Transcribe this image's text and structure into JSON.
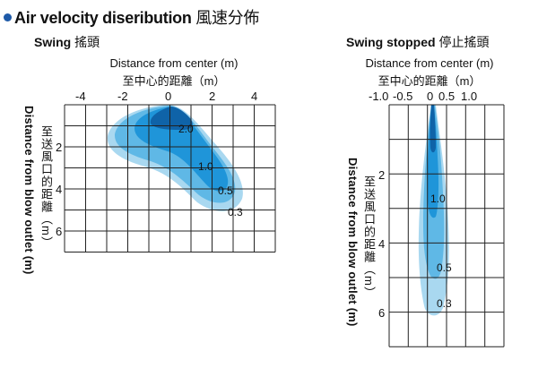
{
  "title": {
    "bullet": "bullet-dot",
    "en": "Air velocity diseribution",
    "cjk": "風速分佈"
  },
  "colors": {
    "outer": "#a9d8f0",
    "middle": "#5fb8e6",
    "inner": "#1f95d9",
    "core": "#0f63a8",
    "grid": "#222222"
  },
  "swing": {
    "subtitle_en": "Swing",
    "subtitle_cjk": "搖頭",
    "x_title_en": "Distance from center (m)",
    "x_title_cjk": "至中心的距離（m）",
    "x_ticks": [
      "-4",
      "-2",
      "0",
      "2",
      "4"
    ],
    "y_ticks": [
      "2",
      "4",
      "6"
    ],
    "y_title_en": "Distance from blow outlet (m)",
    "y_title_cjk": "至送風口的距離（m）",
    "contour_labels": [
      "2.0",
      "1.0",
      "0.5",
      "0.3"
    ]
  },
  "stopped": {
    "subtitle_en": "Swing stopped",
    "subtitle_cjk": "停止搖頭",
    "x_title_en": "Distance from center (m)",
    "x_title_cjk": "至中心的距離（m）",
    "x_ticks": [
      "-1.0",
      "-0.5",
      "0",
      "0.5",
      "1.0"
    ],
    "y_ticks": [
      "2",
      "4",
      "6"
    ],
    "y_title_en": "Distance from blow outlet (m)",
    "y_title_cjk": "至送風口的距離（m）",
    "contour_labels": [
      "1.0",
      "0.5",
      "0.3"
    ]
  }
}
